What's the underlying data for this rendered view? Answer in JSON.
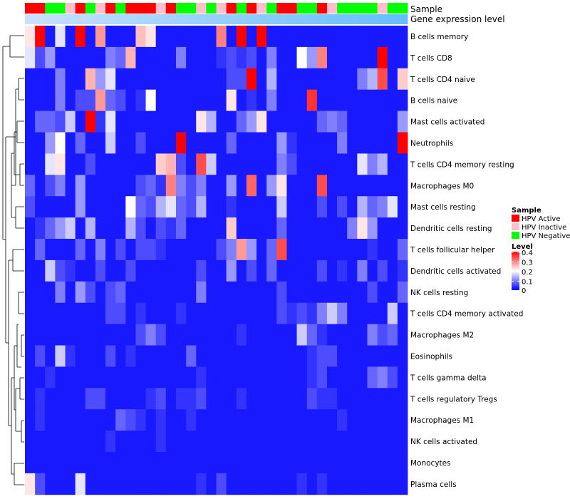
{
  "chart_data": {
    "type": "heatmap",
    "title": "",
    "annotation_labels": [
      "Sample",
      "Gene expression level"
    ],
    "rows": [
      "B cells memory",
      "T cells CD8",
      "T cells CD4 naive",
      "B cells naive",
      "Mast cells activated",
      "Neutrophils",
      "T cells CD4 memory resting",
      "Macrophages M0",
      "Mast cells resting",
      "Dendritic cells resting",
      "T cells follicular helper",
      "Dendritic cells activated",
      "NK cells resting",
      "T cells CD4 memory activated",
      "Macrophages M2",
      "Eosinophils",
      "T cells gamma delta",
      "T cells regulatory  Tregs",
      "Macrophages M1",
      "NK cells activated",
      "Monocytes",
      "Plasma cells"
    ],
    "sample_groups": [
      "A",
      "A",
      "N",
      "N",
      "I",
      "A",
      "N",
      "I",
      "A",
      "N",
      "A",
      "A",
      "A",
      "I",
      "A",
      "N",
      "N",
      "I",
      "N",
      "I",
      "A",
      "N",
      "A",
      "I",
      "N",
      "A",
      "A",
      "N",
      "N",
      "A",
      "I",
      "N",
      "N",
      "N",
      "N",
      "I",
      "N",
      "N"
    ],
    "sample_legend": {
      "title": "Sample",
      "entries": [
        {
          "label": "HPV Active",
          "color": "#ff0000"
        },
        {
          "label": "HPV Inactive",
          "color": "#ffc0cb"
        },
        {
          "label": "HPV Negative",
          "color": "#00ff00"
        }
      ]
    },
    "level_legend": {
      "title": "Level",
      "ticks": [
        "0.4",
        "0.3",
        "0.2",
        "0.1",
        "0"
      ],
      "range": [
        0,
        0.4
      ],
      "colors": [
        "#0000ff",
        "#ffffff",
        "#ff0000"
      ]
    },
    "matrix": [
      [
        0.22,
        0.4,
        0.02,
        0.18,
        0.02,
        0.4,
        0.02,
        0.28,
        0.02,
        0.02,
        0.02,
        0.25,
        0.22,
        0.02,
        0.02,
        0.02,
        0.02,
        0.02,
        0.02,
        0.3,
        0.02,
        0.4,
        0.02,
        0.4,
        0.02,
        0.02,
        0.02,
        0.02,
        0.02,
        0.02,
        0.02,
        0.02,
        0.02,
        0.02,
        0.02,
        0.02,
        0.02,
        0.02
      ],
      [
        0.18,
        0.06,
        0.12,
        0.02,
        0.02,
        0.02,
        0.02,
        0.02,
        0.1,
        0.08,
        0.26,
        0.02,
        0.02,
        0.02,
        0.02,
        0.1,
        0.02,
        0.02,
        0.02,
        0.04,
        0.06,
        0.04,
        0.06,
        0.02,
        0.1,
        0.02,
        0.02,
        0.2,
        0.12,
        0.3,
        0.02,
        0.02,
        0.02,
        0.02,
        0.02,
        0.4,
        0.02,
        0.02
      ],
      [
        0.02,
        0.02,
        0.02,
        0.1,
        0.02,
        0.02,
        0.26,
        0.12,
        0.18,
        0.02,
        0.02,
        0.02,
        0.02,
        0.02,
        0.02,
        0.02,
        0.02,
        0.02,
        0.02,
        0.02,
        0.06,
        0.06,
        0.4,
        0.02,
        0.14,
        0.02,
        0.02,
        0.02,
        0.02,
        0.02,
        0.02,
        0.02,
        0.02,
        0.1,
        0.14,
        0.34,
        0.02,
        0.24
      ],
      [
        0.02,
        0.02,
        0.02,
        0.1,
        0.02,
        0.06,
        0.06,
        0.28,
        0.08,
        0.06,
        0.02,
        0.04,
        0.2,
        0.02,
        0.02,
        0.02,
        0.02,
        0.02,
        0.02,
        0.02,
        0.22,
        0.02,
        0.04,
        0.02,
        0.1,
        0.02,
        0.02,
        0.02,
        0.36,
        0.02,
        0.02,
        0.02,
        0.02,
        0.02,
        0.02,
        0.02,
        0.02,
        0.02
      ],
      [
        0.02,
        0.08,
        0.08,
        0.06,
        0.16,
        0.02,
        0.4,
        0.04,
        0.18,
        0.02,
        0.02,
        0.02,
        0.02,
        0.02,
        0.02,
        0.02,
        0.02,
        0.22,
        0.14,
        0.02,
        0.02,
        0.08,
        0.12,
        0.22,
        0.02,
        0.02,
        0.02,
        0.02,
        0.02,
        0.08,
        0.1,
        0.08,
        0.02,
        0.02,
        0.02,
        0.02,
        0.02,
        0.12
      ],
      [
        0.02,
        0.02,
        0.12,
        0.2,
        0.02,
        0.08,
        0.02,
        0.02,
        0.16,
        0.02,
        0.02,
        0.06,
        0.02,
        0.02,
        0.02,
        0.4,
        0.02,
        0.02,
        0.02,
        0.02,
        0.08,
        0.02,
        0.02,
        0.02,
        0.02,
        0.12,
        0.04,
        0.02,
        0.02,
        0.02,
        0.02,
        0.1,
        0.02,
        0.02,
        0.02,
        0.02,
        0.02,
        0.4
      ],
      [
        0.02,
        0.02,
        0.18,
        0.22,
        0.02,
        0.02,
        0.06,
        0.02,
        0.02,
        0.02,
        0.02,
        0.02,
        0.02,
        0.24,
        0.26,
        0.06,
        0.02,
        0.34,
        0.16,
        0.02,
        0.02,
        0.02,
        0.02,
        0.02,
        0.02,
        0.1,
        0.06,
        0.02,
        0.02,
        0.02,
        0.02,
        0.02,
        0.02,
        0.18,
        0.1,
        0.14,
        0.02,
        0.02
      ],
      [
        0.08,
        0.02,
        0.06,
        0.1,
        0.02,
        0.12,
        0.02,
        0.02,
        0.02,
        0.02,
        0.02,
        0.06,
        0.08,
        0.04,
        0.3,
        0.1,
        0.06,
        0.1,
        0.02,
        0.02,
        0.12,
        0.02,
        0.32,
        0.02,
        0.12,
        0.22,
        0.02,
        0.02,
        0.02,
        0.34,
        0.02,
        0.02,
        0.02,
        0.02,
        0.02,
        0.02,
        0.02,
        0.02
      ],
      [
        0.06,
        0.02,
        0.02,
        0.02,
        0.02,
        0.12,
        0.02,
        0.02,
        0.02,
        0.02,
        0.2,
        0.08,
        0.06,
        0.14,
        0.18,
        0.08,
        0.06,
        0.14,
        0.02,
        0.02,
        0.04,
        0.02,
        0.02,
        0.02,
        0.02,
        0.16,
        0.02,
        0.02,
        0.02,
        0.06,
        0.02,
        0.06,
        0.02,
        0.14,
        0.08,
        0.1,
        0.18,
        0.02
      ],
      [
        0.02,
        0.04,
        0.08,
        0.12,
        0.16,
        0.02,
        0.14,
        0.02,
        0.02,
        0.02,
        0.14,
        0.06,
        0.02,
        0.06,
        0.04,
        0.08,
        0.02,
        0.02,
        0.02,
        0.02,
        0.24,
        0.02,
        0.02,
        0.02,
        0.02,
        0.08,
        0.02,
        0.02,
        0.02,
        0.02,
        0.02,
        0.02,
        0.1,
        0.22,
        0.12,
        0.02,
        0.02,
        0.02
      ],
      [
        0.02,
        0.08,
        0.02,
        0.02,
        0.02,
        0.08,
        0.02,
        0.1,
        0.02,
        0.06,
        0.02,
        0.06,
        0.06,
        0.04,
        0.02,
        0.02,
        0.02,
        0.02,
        0.02,
        0.06,
        0.1,
        0.28,
        0.12,
        0.02,
        0.08,
        0.34,
        0.02,
        0.02,
        0.02,
        0.02,
        0.02,
        0.02,
        0.02,
        0.02,
        0.04,
        0.02,
        0.02,
        0.08
      ],
      [
        0.02,
        0.02,
        0.16,
        0.06,
        0.04,
        0.02,
        0.02,
        0.06,
        0.02,
        0.02,
        0.06,
        0.02,
        0.02,
        0.02,
        0.02,
        0.02,
        0.02,
        0.06,
        0.02,
        0.02,
        0.12,
        0.02,
        0.06,
        0.02,
        0.08,
        0.02,
        0.02,
        0.02,
        0.02,
        0.06,
        0.02,
        0.04,
        0.02,
        0.1,
        0.02,
        0.06,
        0.02,
        0.04
      ],
      [
        0.02,
        0.02,
        0.02,
        0.1,
        0.02,
        0.12,
        0.06,
        0.02,
        0.06,
        0.08,
        0.02,
        0.02,
        0.02,
        0.02,
        0.02,
        0.02,
        0.02,
        0.1,
        0.02,
        0.02,
        0.02,
        0.02,
        0.02,
        0.02,
        0.02,
        0.06,
        0.02,
        0.02,
        0.02,
        0.02,
        0.02,
        0.02,
        0.02,
        0.02,
        0.06,
        0.02,
        0.02,
        0.08
      ],
      [
        0.02,
        0.02,
        0.02,
        0.02,
        0.02,
        0.02,
        0.02,
        0.02,
        0.06,
        0.06,
        0.02,
        0.04,
        0.02,
        0.02,
        0.02,
        0.04,
        0.02,
        0.02,
        0.02,
        0.02,
        0.02,
        0.02,
        0.02,
        0.02,
        0.02,
        0.06,
        0.04,
        0.06,
        0.04,
        0.1,
        0.16,
        0.1,
        0.02,
        0.02,
        0.02,
        0.02,
        0.16,
        0.02
      ],
      [
        0.02,
        0.02,
        0.02,
        0.02,
        0.02,
        0.02,
        0.02,
        0.02,
        0.02,
        0.02,
        0.02,
        0.06,
        0.1,
        0.06,
        0.02,
        0.02,
        0.02,
        0.02,
        0.02,
        0.02,
        0.02,
        0.04,
        0.02,
        0.02,
        0.02,
        0.02,
        0.02,
        0.16,
        0.08,
        0.04,
        0.02,
        0.02,
        0.02,
        0.02,
        0.1,
        0.06,
        0.08,
        0.02
      ],
      [
        0.02,
        0.06,
        0.02,
        0.16,
        0.04,
        0.02,
        0.02,
        0.02,
        0.06,
        0.02,
        0.04,
        0.02,
        0.02,
        0.02,
        0.02,
        0.02,
        0.08,
        0.02,
        0.02,
        0.02,
        0.02,
        0.02,
        0.02,
        0.02,
        0.02,
        0.02,
        0.02,
        0.02,
        0.04,
        0.06,
        0.06,
        0.02,
        0.02,
        0.02,
        0.02,
        0.02,
        0.02,
        0.02
      ],
      [
        0.02,
        0.02,
        0.04,
        0.02,
        0.02,
        0.02,
        0.02,
        0.02,
        0.02,
        0.02,
        0.02,
        0.02,
        0.02,
        0.02,
        0.02,
        0.02,
        0.02,
        0.04,
        0.02,
        0.02,
        0.02,
        0.02,
        0.02,
        0.02,
        0.02,
        0.02,
        0.02,
        0.02,
        0.04,
        0.06,
        0.02,
        0.02,
        0.02,
        0.02,
        0.08,
        0.1,
        0.06,
        0.02
      ],
      [
        0.02,
        0.04,
        0.02,
        0.02,
        0.02,
        0.02,
        0.06,
        0.06,
        0.02,
        0.02,
        0.02,
        0.02,
        0.04,
        0.06,
        0.02,
        0.04,
        0.04,
        0.06,
        0.02,
        0.02,
        0.02,
        0.04,
        0.02,
        0.02,
        0.02,
        0.02,
        0.02,
        0.02,
        0.06,
        0.04,
        0.04,
        0.02,
        0.02,
        0.02,
        0.02,
        0.02,
        0.02,
        0.02
      ],
      [
        0.02,
        0.04,
        0.02,
        0.02,
        0.02,
        0.02,
        0.02,
        0.02,
        0.02,
        0.08,
        0.06,
        0.04,
        0.02,
        0.04,
        0.02,
        0.02,
        0.04,
        0.02,
        0.02,
        0.02,
        0.02,
        0.02,
        0.02,
        0.02,
        0.02,
        0.02,
        0.02,
        0.02,
        0.02,
        0.02,
        0.02,
        0.04,
        0.02,
        0.02,
        0.02,
        0.02,
        0.02,
        0.02
      ],
      [
        0.02,
        0.02,
        0.02,
        0.02,
        0.02,
        0.02,
        0.02,
        0.02,
        0.04,
        0.02,
        0.02,
        0.02,
        0.02,
        0.04,
        0.02,
        0.02,
        0.02,
        0.02,
        0.02,
        0.02,
        0.02,
        0.02,
        0.02,
        0.02,
        0.02,
        0.02,
        0.02,
        0.02,
        0.02,
        0.02,
        0.02,
        0.02,
        0.02,
        0.02,
        0.02,
        0.02,
        0.02,
        0.02
      ],
      [
        0.02,
        0.02,
        0.02,
        0.02,
        0.02,
        0.02,
        0.02,
        0.02,
        0.02,
        0.02,
        0.02,
        0.02,
        0.02,
        0.02,
        0.02,
        0.02,
        0.02,
        0.02,
        0.02,
        0.02,
        0.02,
        0.02,
        0.02,
        0.02,
        0.02,
        0.02,
        0.02,
        0.02,
        0.02,
        0.02,
        0.02,
        0.02,
        0.02,
        0.02,
        0.02,
        0.02,
        0.02,
        0.02
      ],
      [
        0.22,
        0.06,
        0.02,
        0.02,
        0.02,
        0.18,
        0.02,
        0.02,
        0.02,
        0.02,
        0.02,
        0.02,
        0.02,
        0.02,
        0.02,
        0.02,
        0.02,
        0.04,
        0.02,
        0.06,
        0.02,
        0.02,
        0.02,
        0.02,
        0.02,
        0.02,
        0.02,
        0.04,
        0.02,
        0.04,
        0.02,
        0.02,
        0.02,
        0.02,
        0.02,
        0.02,
        0.02,
        0.02
      ]
    ]
  }
}
